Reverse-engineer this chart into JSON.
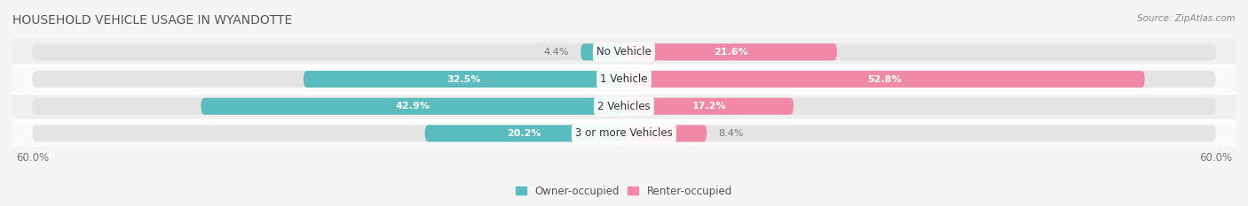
{
  "title": "HOUSEHOLD VEHICLE USAGE IN WYANDOTTE",
  "source": "Source: ZipAtlas.com",
  "categories": [
    "No Vehicle",
    "1 Vehicle",
    "2 Vehicles",
    "3 or more Vehicles"
  ],
  "owner_values": [
    4.4,
    32.5,
    42.9,
    20.2
  ],
  "renter_values": [
    21.6,
    52.8,
    17.2,
    8.4
  ],
  "owner_color": "#5bbcbf",
  "renter_color": "#f088a8",
  "owner_label": "Owner-occupied",
  "renter_label": "Renter-occupied",
  "bg_color": "#f5f5f5",
  "bar_bg_color": "#e4e4e4",
  "row_bg_colors": [
    "#ffffff",
    "#f0f0f0",
    "#ffffff",
    "#f0f0f0"
  ],
  "title_color": "#555555",
  "sep_color": "#ffffff"
}
